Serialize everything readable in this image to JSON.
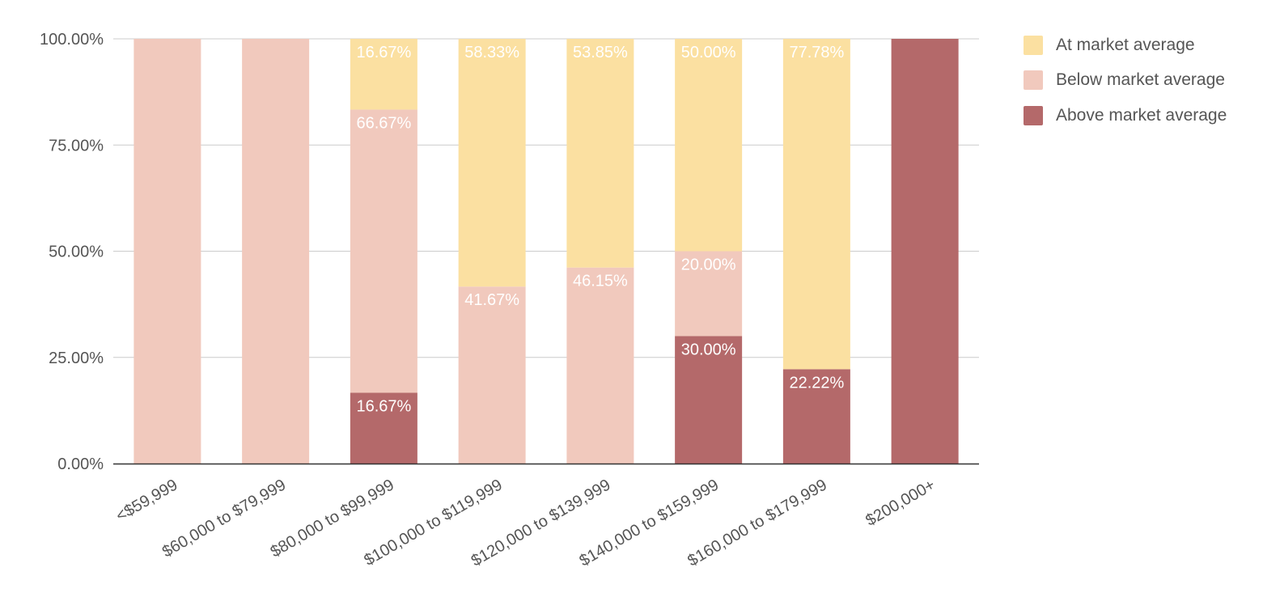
{
  "chart_data": {
    "type": "bar",
    "stacked": true,
    "categories": [
      "<$59,999",
      "$60,000 to $79,999",
      "$80,000 to $99,999",
      "$100,000 to $119,999",
      "$120,000 to $139,999",
      "$140,000 to $159,999",
      "$160,000 to $179,999",
      "$200,000+"
    ],
    "series": [
      {
        "key": "above",
        "name": "Above market average",
        "color": "#b4696a",
        "values": [
          0,
          0,
          16.67,
          0,
          0,
          30.0,
          22.22,
          100
        ]
      },
      {
        "key": "below",
        "name": "Below market average",
        "color": "#f1c9bd",
        "values": [
          100,
          100,
          66.67,
          41.67,
          46.15,
          20.0,
          0,
          0
        ]
      },
      {
        "key": "at",
        "name": "At market average",
        "color": "#fbe0a1",
        "values": [
          0,
          0,
          16.67,
          58.33,
          53.85,
          50.0,
          77.78,
          0
        ]
      }
    ],
    "data_labels": {
      "above": [
        "",
        "",
        "16.67%",
        "",
        "",
        "30.00%",
        "22.22%",
        ""
      ],
      "below": [
        "",
        "",
        "66.67%",
        "41.67%",
        "46.15%",
        "20.00%",
        "",
        ""
      ],
      "at": [
        "",
        "",
        "16.67%",
        "58.33%",
        "53.85%",
        "50.00%",
        "77.78%",
        ""
      ]
    },
    "yticks": [
      0,
      25,
      50,
      75,
      100
    ],
    "ytick_labels": [
      "0.00%",
      "25.00%",
      "50.00%",
      "75.00%",
      "100.00%"
    ],
    "ylim": [
      0,
      100
    ],
    "grid": true,
    "legend_position": "right-top",
    "legend_order": [
      "at",
      "below",
      "above"
    ],
    "title": "",
    "xlabel": "",
    "ylabel": ""
  }
}
